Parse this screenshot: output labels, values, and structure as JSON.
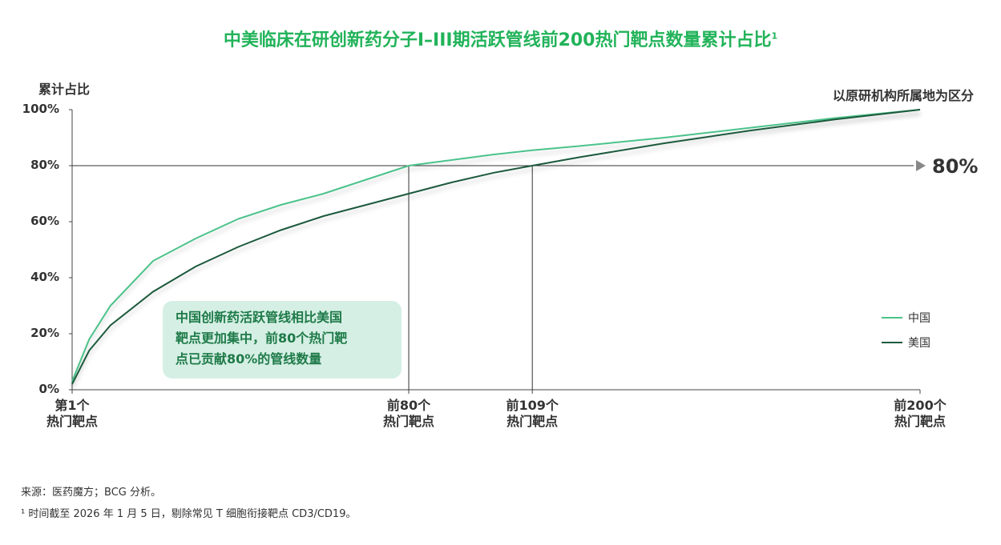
{
  "chart_data": {
    "type": "line",
    "title": "中美临床在研创新药分子I–III期活跃管线前200热门靶点数量累计占比",
    "title_note": "1",
    "y_label": "累计占比",
    "subtitle": "以原研机构所属地为区分",
    "x": [
      1,
      5,
      10,
      20,
      30,
      40,
      50,
      60,
      70,
      80,
      90,
      100,
      109,
      120,
      140,
      160,
      180,
      200
    ],
    "series": [
      {
        "name": "中国",
        "color": "#4cc38a",
        "values": [
          3,
          18,
          30,
          46,
          54,
          61,
          66,
          70,
          75,
          80,
          82,
          84,
          85.5,
          87,
          90,
          93.5,
          97,
          100
        ]
      },
      {
        "name": "美国",
        "color": "#1e5a3c",
        "values": [
          2,
          14,
          23,
          35,
          44,
          51,
          57,
          62,
          66,
          70,
          74,
          77.5,
          80,
          83,
          88,
          92.5,
          96.5,
          100
        ]
      }
    ],
    "xlim": [
      1,
      200
    ],
    "xticks": [
      {
        "value": 1,
        "label": "第1个\n热门靶点"
      },
      {
        "value": 80,
        "label": "前80个\n热门靶点"
      },
      {
        "value": 109,
        "label": "前109个\n热门靶点"
      },
      {
        "value": 200,
        "label": "前200个\n热门靶点"
      }
    ],
    "ylim": [
      0,
      100
    ],
    "yticks": [
      {
        "value": 0,
        "label": "0%"
      },
      {
        "value": 20,
        "label": "20%"
      },
      {
        "value": 40,
        "label": "40%"
      },
      {
        "value": 60,
        "label": "60%"
      },
      {
        "value": 80,
        "label": "80%"
      },
      {
        "value": 100,
        "label": "100%"
      }
    ],
    "hline": {
      "value": 80,
      "label": "80%"
    },
    "vlines": [
      80,
      109
    ],
    "annotation": "中国创新药活跃管线相比美国\n靶点更加集中，前80个热门靶\n点已贡献80%的管线数量",
    "sources": [
      "来源：医药魔方；BCG 分析。",
      "¹ 时间截至 2026 年 1 月 5 日，剔除常见 T 细胞衔接靶点 CD3/CD19。"
    ]
  }
}
